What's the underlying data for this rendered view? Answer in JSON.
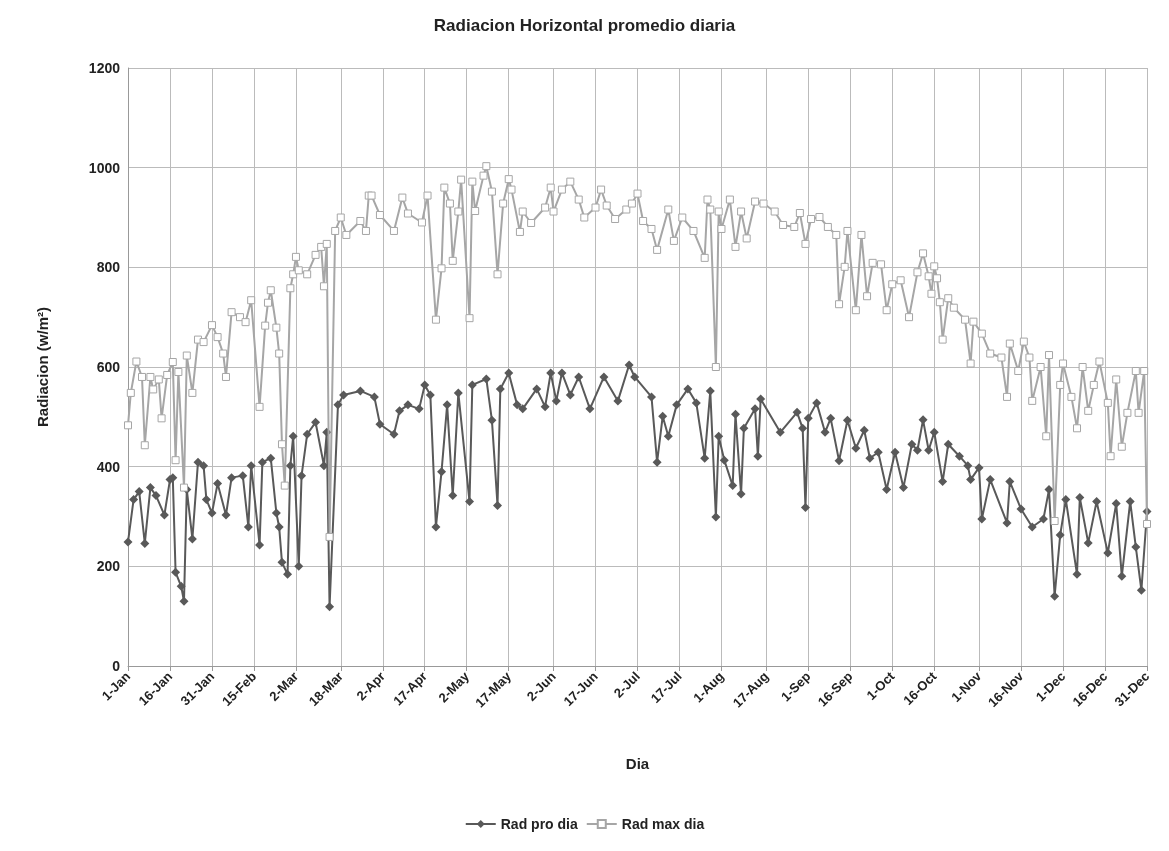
{
  "chart_data": {
    "type": "line",
    "title": "Radiacion Horizontal promedio diaria",
    "xlabel": "Dia",
    "ylabel": "Radiacion (w/m²)",
    "xlim": [
      "--01-01",
      "--12-31"
    ],
    "xticks": [
      {
        "value": "--01-01",
        "label": "1-Jan"
      },
      {
        "value": "--01-16",
        "label": "16-Jan"
      },
      {
        "value": "--01-31",
        "label": "31-Jan"
      },
      {
        "value": "--02-15",
        "label": "15-Feb"
      },
      {
        "value": "--03-02",
        "label": "2-Mar"
      },
      {
        "value": "--03-18",
        "label": "18-Mar"
      },
      {
        "value": "--04-02",
        "label": "2-Apr"
      },
      {
        "value": "--04-17",
        "label": "17-Apr"
      },
      {
        "value": "--05-02",
        "label": "2-May"
      },
      {
        "value": "--05-17",
        "label": "17-May"
      },
      {
        "value": "--06-02",
        "label": "2-Jun"
      },
      {
        "value": "--06-17",
        "label": "17-Jun"
      },
      {
        "value": "--07-02",
        "label": "2-Jul"
      },
      {
        "value": "--07-17",
        "label": "17-Jul"
      },
      {
        "value": "--08-01",
        "label": "1-Aug"
      },
      {
        "value": "--08-17",
        "label": "17-Aug"
      },
      {
        "value": "--09-01",
        "label": "1-Sep"
      },
      {
        "value": "--09-16",
        "label": "16-Sep"
      },
      {
        "value": "--10-01",
        "label": "1-Oct"
      },
      {
        "value": "--10-16",
        "label": "16-Oct"
      },
      {
        "value": "--11-01",
        "label": "1-Nov"
      },
      {
        "value": "--11-16",
        "label": "16-Nov"
      },
      {
        "value": "--12-01",
        "label": "1-Dec"
      },
      {
        "value": "--12-16",
        "label": "16-Dec"
      },
      {
        "value": "--12-31",
        "label": "31-Dec"
      }
    ],
    "ylim": [
      0,
      1200
    ],
    "yticks": [
      0,
      200,
      400,
      600,
      800,
      1000,
      1200
    ],
    "grid": true,
    "legend": "bottom",
    "series": [
      {
        "name": "Rad pro dia",
        "color": "#595959",
        "marker": "diamond",
        "x": [
          "--01-01",
          "--01-03",
          "--01-05",
          "--01-07",
          "--01-09",
          "--01-11",
          "--01-14",
          "--01-16",
          "--01-17",
          "--01-18",
          "--01-20",
          "--01-21",
          "--01-22",
          "--01-24",
          "--01-26",
          "--01-28",
          "--01-29",
          "--01-31",
          "--02-02",
          "--02-05",
          "--02-07",
          "--02-11",
          "--02-13",
          "--02-14",
          "--02-17",
          "--02-18",
          "--02-21",
          "--02-23",
          "--02-24",
          "--02-25",
          "--02-27",
          "--02-28",
          "--03-01",
          "--03-03",
          "--03-04",
          "--03-06",
          "--03-09",
          "--03-12",
          "--03-13",
          "--03-14",
          "--03-17",
          "--03-19",
          "--03-25",
          "--03-30",
          "--04-01",
          "--04-06",
          "--04-08",
          "--04-11",
          "--04-15",
          "--04-17",
          "--04-19",
          "--04-21",
          "--04-23",
          "--04-25",
          "--04-27",
          "--04-29",
          "--05-03",
          "--05-04",
          "--05-09",
          "--05-11",
          "--05-13",
          "--05-14",
          "--05-17",
          "--05-20",
          "--05-22",
          "--05-27",
          "--05-30",
          "--06-01",
          "--06-03",
          "--06-05",
          "--06-08",
          "--06-11",
          "--06-15",
          "--06-20",
          "--06-25",
          "--06-29",
          "--07-01",
          "--07-07",
          "--07-09",
          "--07-11",
          "--07-13",
          "--07-16",
          "--07-20",
          "--07-23",
          "--07-26",
          "--07-28",
          "--07-30",
          "--07-31",
          "--08-02",
          "--08-05",
          "--08-06",
          "--08-08",
          "--08-09",
          "--08-13",
          "--08-14",
          "--08-15",
          "--08-22",
          "--08-28",
          "--08-30",
          "--08-31",
          "--09-01",
          "--09-04",
          "--09-07",
          "--09-09",
          "--09-12",
          "--09-15",
          "--09-18",
          "--09-21",
          "--09-23",
          "--09-26",
          "--09-29",
          "--10-02",
          "--10-05",
          "--10-08",
          "--10-10",
          "--10-12",
          "--10-14",
          "--10-16",
          "--10-19",
          "--10-21",
          "--10-25",
          "--10-28",
          "--10-29",
          "--11-01",
          "--11-02",
          "--11-05",
          "--11-11",
          "--11-12",
          "--11-16",
          "--11-20",
          "--11-24",
          "--11-26",
          "--11-28",
          "--11-30",
          "--12-02",
          "--12-06",
          "--12-07",
          "--12-10",
          "--12-13",
          "--12-17",
          "--12-20",
          "--12-22",
          "--12-25",
          "--12-27",
          "--12-29",
          "--12-31"
        ],
        "values": [
          249,
          334,
          350,
          246,
          358,
          342,
          303,
          374,
          378,
          188,
          160,
          130,
          354,
          255,
          409,
          402,
          334,
          307,
          366,
          303,
          378,
          382,
          279,
          402,
          243,
          409,
          417,
          307,
          279,
          208,
          184,
          402,
          461,
          200,
          382,
          465,
          489,
          402,
          469,
          119,
          524,
          544,
          552,
          540,
          485,
          465,
          512,
          524,
          516,
          564,
          544,
          279,
          390,
          524,
          342,
          548,
          330,
          564,
          576,
          493,
          322,
          556,
          588,
          524,
          516,
          556,
          520,
          588,
          532,
          588,
          544,
          580,
          516,
          580,
          532,
          604,
          580,
          540,
          409,
          501,
          461,
          524,
          556,
          528,
          417,
          552,
          299,
          461,
          413,
          362,
          505,
          345,
          477,
          516,
          421,
          536,
          469,
          509,
          477,
          318,
          497,
          528,
          469,
          497,
          412,
          493,
          437,
          473,
          417,
          429,
          354,
          429,
          358,
          445,
          433,
          494,
          433,
          469,
          370,
          445,
          421,
          402,
          374,
          398,
          295,
          374,
          287,
          370,
          315,
          279,
          295,
          354,
          140,
          263,
          334,
          184,
          338,
          247,
          330,
          227,
          326,
          180,
          330,
          239,
          152,
          310
        ]
      },
      {
        "name": "Rad max dia",
        "color": "#a6a6a6",
        "marker": "square",
        "x": [
          "--01-01",
          "--01-02",
          "--01-04",
          "--01-06",
          "--01-07",
          "--01-09",
          "--01-10",
          "--01-12",
          "--01-13",
          "--01-15",
          "--01-17",
          "--01-18",
          "--01-19",
          "--01-21",
          "--01-22",
          "--01-24",
          "--01-26",
          "--01-28",
          "--01-31",
          "--02-02",
          "--02-04",
          "--02-05",
          "--02-07",
          "--02-10",
          "--02-12",
          "--02-14",
          "--02-17",
          "--02-19",
          "--02-20",
          "--02-21",
          "--02-23",
          "--02-24",
          "--02-25",
          "--02-26",
          "--02-28",
          "--03-01",
          "--03-02",
          "--03-03",
          "--03-06",
          "--03-09",
          "--03-11",
          "--03-12",
          "--03-13",
          "--03-14",
          "--03-16",
          "--03-18",
          "--03-20",
          "--03-25",
          "--03-27",
          "--03-28",
          "--03-29",
          "--04-01",
          "--04-06",
          "--04-09",
          "--04-11",
          "--04-16",
          "--04-18",
          "--04-21",
          "--04-23",
          "--04-24",
          "--04-26",
          "--04-27",
          "--04-29",
          "--04-30",
          "--05-03",
          "--05-04",
          "--05-05",
          "--05-08",
          "--05-09",
          "--05-11",
          "--05-13",
          "--05-15",
          "--05-17",
          "--05-18",
          "--05-21",
          "--05-22",
          "--05-25",
          "--05-30",
          "--06-01",
          "--06-02",
          "--06-05",
          "--06-08",
          "--06-11",
          "--06-13",
          "--06-17",
          "--06-19",
          "--06-21",
          "--06-24",
          "--06-28",
          "--06-30",
          "--07-02",
          "--07-04",
          "--07-07",
          "--07-09",
          "--07-13",
          "--07-15",
          "--07-18",
          "--07-22",
          "--07-26",
          "--07-27",
          "--07-28",
          "--07-30",
          "--07-31",
          "--08-01",
          "--08-04",
          "--08-06",
          "--08-08",
          "--08-10",
          "--08-13",
          "--08-16",
          "--08-20",
          "--08-23",
          "--08-27",
          "--08-29",
          "--08-31",
          "--09-02",
          "--09-05",
          "--09-08",
          "--09-11",
          "--09-12",
          "--09-14",
          "--09-15",
          "--09-18",
          "--09-20",
          "--09-22",
          "--09-24",
          "--09-27",
          "--09-29",
          "--10-01",
          "--10-04",
          "--10-07",
          "--10-10",
          "--10-12",
          "--10-14",
          "--10-15",
          "--10-16",
          "--10-17",
          "--10-18",
          "--10-19",
          "--10-21",
          "--10-23",
          "--10-27",
          "--10-29",
          "--10-30",
          "--11-02",
          "--11-05",
          "--11-09",
          "--11-11",
          "--11-12",
          "--11-15",
          "--11-17",
          "--11-19",
          "--11-20",
          "--11-23",
          "--11-25",
          "--11-26",
          "--11-28",
          "--11-30",
          "--12-01",
          "--12-04",
          "--12-06",
          "--12-08",
          "--12-10",
          "--12-12",
          "--12-14",
          "--12-17",
          "--12-18",
          "--12-20",
          "--12-22",
          "--12-24",
          "--12-27",
          "--12-28",
          "--12-30",
          "--12-31"
        ],
        "values": [
          483,
          548,
          611,
          580,
          443,
          580,
          555,
          575,
          497,
          584,
          610,
          413,
          590,
          358,
          623,
          548,
          655,
          650,
          684,
          660,
          627,
          580,
          710,
          700,
          690,
          734,
          520,
          683,
          729,
          754,
          679,
          627,
          445,
          362,
          758,
          786,
          821,
          794,
          786,
          825,
          841,
          762,
          847,
          259,
          873,
          900,
          865,
          893,
          873,
          944,
          944,
          905,
          873,
          940,
          908,
          890,
          944,
          695,
          798,
          960,
          928,
          813,
          912,
          976,
          698,
          972,
          913,
          984,
          1003,
          952,
          786,
          928,
          977,
          956,
          871,
          912,
          889,
          920,
          960,
          912,
          956,
          972,
          936,
          900,
          920,
          956,
          924,
          897,
          916,
          928,
          948,
          893,
          877,
          835,
          916,
          853,
          900,
          873,
          819,
          936,
          916,
          600,
          912,
          877,
          936,
          841,
          912,
          858,
          932,
          928,
          912,
          885,
          881,
          909,
          847,
          897,
          901,
          881,
          865,
          726,
          801,
          873,
          714,
          865,
          742,
          809,
          806,
          714,
          766,
          774,
          700,
          790,
          828,
          782,
          747,
          802,
          778,
          730,
          655,
          738,
          719,
          695,
          607,
          691,
          667,
          627,
          619,
          540,
          647,
          592,
          651,
          619,
          532,
          600,
          461,
          624,
          291,
          564,
          607,
          540,
          477,
          600,
          512,
          564,
          611,
          528,
          421,
          575,
          440,
          508,
          592,
          508,
          592,
          285
        ]
      }
    ]
  }
}
